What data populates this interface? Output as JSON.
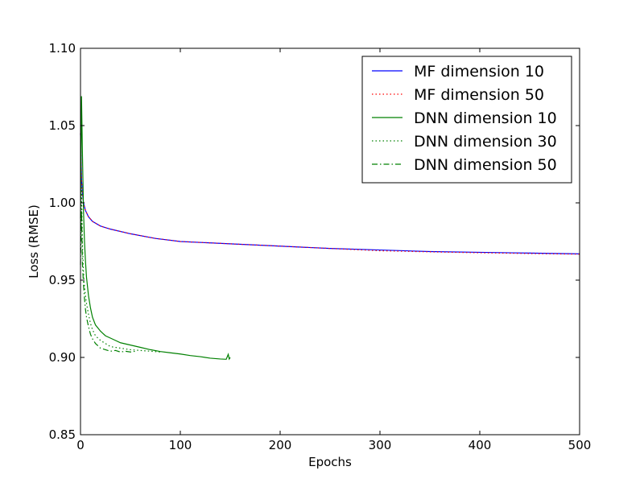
{
  "chart_data": {
    "type": "line",
    "title": "",
    "xlabel": "Epochs",
    "ylabel": "Loss (RMSE)",
    "xlim": [
      0,
      500
    ],
    "ylim": [
      0.85,
      1.1
    ],
    "xticks": [
      0,
      100,
      200,
      300,
      400,
      500
    ],
    "yticks": [
      0.85,
      0.9,
      0.95,
      1.0,
      1.05,
      1.1
    ],
    "ytick_labels": [
      "0.85",
      "0.90",
      "0.95",
      "1.00",
      "1.05",
      "1.10"
    ],
    "grid": false,
    "legend_position": "top-right",
    "series": [
      {
        "name": "MF dimension 10",
        "color": "#0000ff",
        "style": "solid",
        "x": [
          0,
          1,
          2,
          3,
          5,
          8,
          12,
          20,
          30,
          50,
          75,
          100,
          150,
          200,
          250,
          300,
          350,
          400,
          450,
          500
        ],
        "y": [
          1.045,
          1.015,
          1.006,
          1.0,
          0.995,
          0.991,
          0.988,
          0.985,
          0.983,
          0.98,
          0.977,
          0.975,
          0.9735,
          0.972,
          0.9705,
          0.9695,
          0.9685,
          0.968,
          0.9675,
          0.967
        ]
      },
      {
        "name": "MF dimension 50",
        "color": "#ff0000",
        "style": "dotted",
        "x": [
          0,
          1,
          2,
          3,
          5,
          8,
          12,
          20,
          30,
          50,
          75,
          100,
          150,
          200,
          250,
          300,
          350,
          400,
          450,
          500
        ],
        "y": [
          1.045,
          1.015,
          1.006,
          1.0,
          0.995,
          0.991,
          0.988,
          0.985,
          0.983,
          0.98,
          0.977,
          0.975,
          0.9735,
          0.972,
          0.9705,
          0.969,
          0.9683,
          0.9677,
          0.9672,
          0.9668
        ]
      },
      {
        "name": "DNN dimension 10",
        "color": "#008000",
        "style": "solid",
        "x": [
          0,
          1,
          2,
          3,
          4,
          5,
          6,
          8,
          10,
          12,
          15,
          20,
          25,
          30,
          35,
          40,
          50,
          60,
          70,
          80,
          90,
          100,
          110,
          120,
          130,
          140,
          146,
          148,
          149,
          150
        ],
        "y": [
          0.99,
          1.069,
          1.03,
          0.995,
          0.975,
          0.962,
          0.952,
          0.94,
          0.932,
          0.926,
          0.921,
          0.917,
          0.914,
          0.9125,
          0.911,
          0.9095,
          0.908,
          0.9065,
          0.905,
          0.9038,
          0.903,
          0.9022,
          0.9012,
          0.9005,
          0.8995,
          0.899,
          0.8988,
          0.902,
          0.899,
          0.9
        ]
      },
      {
        "name": "DNN dimension 30",
        "color": "#008000",
        "style": "dotted",
        "x": [
          0,
          1,
          2,
          3,
          4,
          5,
          6,
          8,
          10,
          12,
          15,
          20,
          25,
          30,
          40,
          50,
          60,
          70,
          80
        ],
        "y": [
          0.97,
          1.01,
          0.972,
          0.955,
          0.946,
          0.94,
          0.935,
          0.928,
          0.922,
          0.918,
          0.914,
          0.911,
          0.909,
          0.907,
          0.906,
          0.905,
          0.9045,
          0.904,
          0.9035
        ]
      },
      {
        "name": "DNN dimension 50",
        "color": "#008000",
        "style": "dashdot",
        "x": [
          0,
          1,
          2,
          3,
          4,
          5,
          6,
          8,
          10,
          12,
          15,
          20,
          25,
          30,
          35,
          40,
          45,
          50,
          55
        ],
        "y": [
          0.96,
          0.995,
          0.96,
          0.947,
          0.938,
          0.931,
          0.926,
          0.92,
          0.915,
          0.912,
          0.909,
          0.906,
          0.905,
          0.904,
          0.9045,
          0.9035,
          0.904,
          0.9035,
          0.904
        ]
      }
    ]
  }
}
